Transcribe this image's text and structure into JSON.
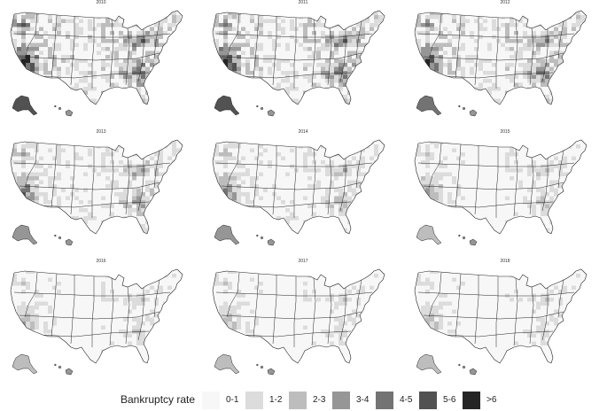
{
  "maps": [
    {
      "year": "2010",
      "intensity": 1.0
    },
    {
      "year": "2011",
      "intensity": 0.96
    },
    {
      "year": "2012",
      "intensity": 0.86
    },
    {
      "year": "2013",
      "intensity": 0.68
    },
    {
      "year": "2014",
      "intensity": 0.58
    },
    {
      "year": "2015",
      "intensity": 0.48
    },
    {
      "year": "2016",
      "intensity": 0.42
    },
    {
      "year": "2017",
      "intensity": 0.4
    },
    {
      "year": "2018",
      "intensity": 0.39
    }
  ],
  "legend": {
    "title": "Bankruptcy rate",
    "items": [
      {
        "label": "0-1",
        "color": "#f7f7f7"
      },
      {
        "label": "1-2",
        "color": "#dcdcdc"
      },
      {
        "label": "2-3",
        "color": "#bdbdbd"
      },
      {
        "label": "3-4",
        "color": "#969696"
      },
      {
        "label": "4-5",
        "color": "#737373"
      },
      {
        "label": "5-6",
        "color": "#525252"
      },
      {
        "label": ">6",
        "color": "#252525"
      }
    ]
  }
}
